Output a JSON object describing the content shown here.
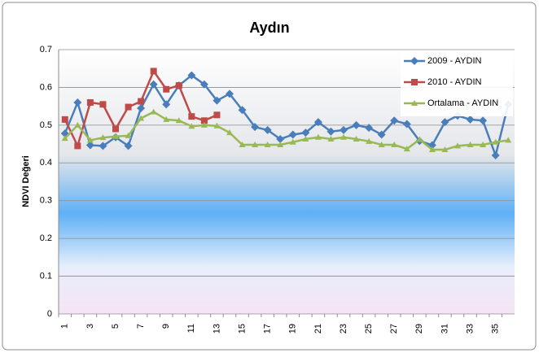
{
  "chart_data": {
    "type": "line",
    "title": "Aydın",
    "y_label": "NDVI Değeri",
    "categories": [
      1,
      null,
      3,
      null,
      5,
      null,
      7,
      null,
      9,
      null,
      11,
      null,
      13,
      null,
      15,
      null,
      17,
      null,
      19,
      null,
      21,
      null,
      23,
      null,
      25,
      null,
      27,
      null,
      29,
      null,
      31,
      null,
      33,
      null,
      35,
      null
    ],
    "series": [
      {
        "name": "2009 - AYDIN",
        "color": "#4a7ebb",
        "marker": "diamond",
        "values": [
          0.478,
          0.56,
          0.447,
          0.445,
          0.468,
          0.445,
          0.545,
          0.608,
          0.555,
          0.605,
          0.632,
          0.608,
          0.565,
          0.583,
          0.54,
          0.495,
          0.487,
          0.463,
          0.475,
          0.48,
          0.508,
          0.483,
          0.487,
          0.5,
          0.493,
          0.475,
          0.512,
          0.503,
          0.458,
          0.447,
          0.508,
          0.525,
          0.515,
          0.512,
          0.42,
          0.555
        ]
      },
      {
        "name": "2010 - AYDIN",
        "color": "#be4b48",
        "marker": "square",
        "values": [
          0.515,
          0.445,
          0.56,
          0.555,
          0.49,
          0.548,
          0.563,
          0.643,
          0.595,
          0.605,
          0.523,
          0.512,
          0.527,
          null,
          null,
          null,
          null,
          null,
          null,
          null,
          null,
          null,
          null,
          null,
          null,
          null,
          null,
          null,
          null,
          null,
          null,
          null,
          null,
          null,
          null,
          null
        ]
      },
      {
        "name": "Ortalama - AYDIN",
        "color": "#98b954",
        "marker": "triangle",
        "values": [
          0.465,
          0.5,
          0.46,
          0.467,
          0.47,
          0.472,
          0.518,
          0.535,
          0.515,
          0.512,
          0.497,
          0.5,
          0.498,
          0.48,
          0.448,
          0.448,
          0.448,
          0.448,
          0.455,
          0.463,
          0.468,
          0.463,
          0.468,
          0.463,
          0.457,
          0.448,
          0.448,
          0.437,
          0.462,
          0.435,
          0.435,
          0.445,
          0.448,
          0.448,
          0.455,
          0.46
        ]
      }
    ],
    "ylim": [
      0,
      0.7
    ],
    "yticks": [
      0,
      0.1,
      0.2,
      0.3,
      0.4,
      0.5,
      0.6,
      0.7
    ],
    "grid": true,
    "legend": "top-right"
  }
}
